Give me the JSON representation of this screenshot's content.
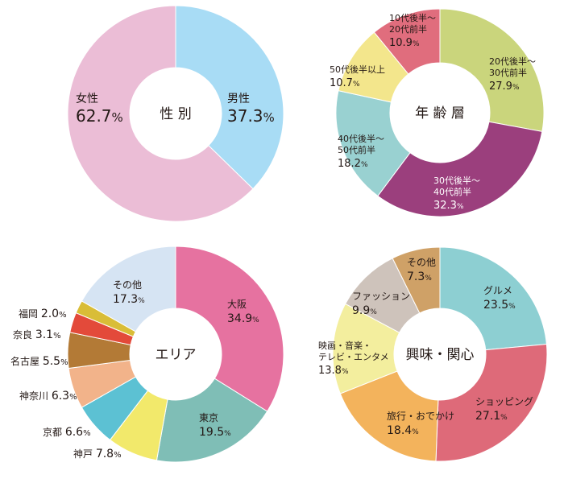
{
  "chart_data": [
    {
      "type": "pie",
      "center_label": "性 別",
      "slices": [
        {
          "label": "男性",
          "value": 37.3,
          "value_text": "37.3",
          "color": "#a8dcf5"
        },
        {
          "label": "女性",
          "value": 62.7,
          "value_text": "62.7",
          "color": "#ebbdd6"
        }
      ]
    },
    {
      "type": "pie",
      "center_label": "年 齢 層",
      "slices": [
        {
          "label": "20代後半～\n30代前半",
          "value": 27.9,
          "value_text": "27.9",
          "color": "#cad57c"
        },
        {
          "label": "30代後半～\n40代前半",
          "value": 32.3,
          "value_text": "32.3",
          "color": "#9b3f7d",
          "label_color": "#ffffff"
        },
        {
          "label": "40代後半～\n50代前半",
          "value": 18.2,
          "value_text": "18.2",
          "color": "#99d1d1"
        },
        {
          "label": "50代後半以上",
          "value": 10.7,
          "value_text": "10.7",
          "color": "#f3e68c"
        },
        {
          "label": "10代後半～\n20代前半",
          "value": 10.9,
          "value_text": "10.9",
          "color": "#e06d7d"
        }
      ]
    },
    {
      "type": "pie",
      "center_label": "エリア",
      "slices": [
        {
          "label": "大阪",
          "value": 34.9,
          "value_text": "34.9",
          "color": "#e672a0"
        },
        {
          "label": "東京",
          "value": 19.5,
          "value_text": "19.5",
          "color": "#7fbeb6"
        },
        {
          "label": "神戸",
          "value": 7.8,
          "value_text": "7.8",
          "color": "#f2e96b"
        },
        {
          "label": "京都",
          "value": 6.6,
          "value_text": "6.6",
          "color": "#5cc1d3"
        },
        {
          "label": "神奈川",
          "value": 6.3,
          "value_text": "6.3",
          "color": "#f2b38a"
        },
        {
          "label": "名古屋",
          "value": 5.5,
          "value_text": "5.5",
          "color": "#b37a36"
        },
        {
          "label": "奈良",
          "value": 3.1,
          "value_text": "3.1",
          "color": "#e34a3a"
        },
        {
          "label": "福岡",
          "value": 2.0,
          "value_text": "2.0",
          "color": "#d9bd37"
        },
        {
          "label": "その他",
          "value": 17.3,
          "value_text": "17.3",
          "color": "#d6e4f3"
        }
      ]
    },
    {
      "type": "pie",
      "center_label": "興味・関心",
      "slices": [
        {
          "label": "グルメ",
          "value": 23.5,
          "value_text": "23.5",
          "color": "#8dcfd2"
        },
        {
          "label": "ショッピング",
          "value": 27.1,
          "value_text": "27.1",
          "color": "#de6a79"
        },
        {
          "label": "旅行・おでかけ",
          "value": 18.4,
          "value_text": "18.4",
          "color": "#f3b35c"
        },
        {
          "label": "映画・音楽・\nテレビ・エンタメ",
          "value": 13.8,
          "value_text": "13.8",
          "color": "#f3ee9e"
        },
        {
          "label": "ファッション",
          "value": 9.9,
          "value_text": "9.9",
          "color": "#cec3bb"
        },
        {
          "label": "その他",
          "value": 7.3,
          "value_text": "7.3",
          "color": "#cfa167"
        }
      ]
    }
  ],
  "percent_sign": "%"
}
